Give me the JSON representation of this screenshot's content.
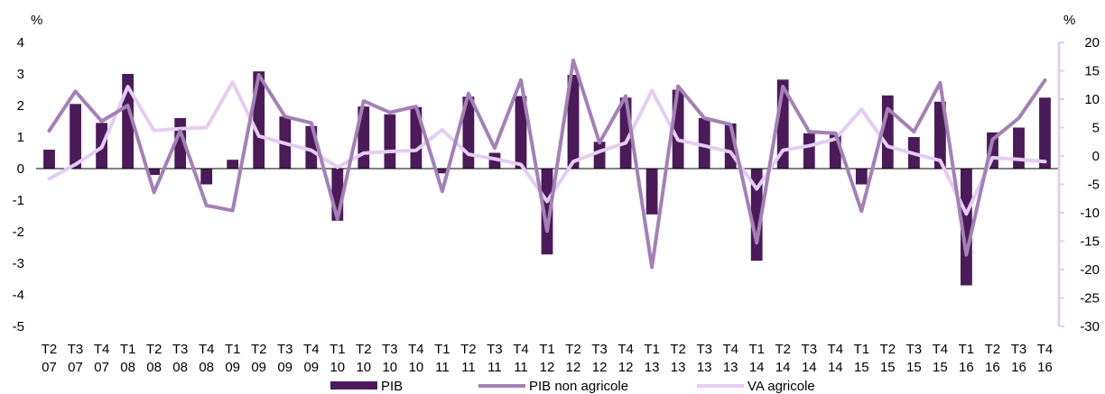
{
  "chart_data": {
    "type": "bar",
    "left_axis": {
      "unit": "%",
      "ylim": [
        -5,
        4
      ],
      "ticks": [
        "4",
        "3",
        "2",
        "1",
        "0",
        "-1",
        "-2",
        "-3",
        "-4",
        "-5"
      ]
    },
    "right_axis": {
      "unit": "%",
      "ylim": [
        -30,
        20
      ],
      "ticks": [
        "20",
        "15",
        "10",
        "5",
        "0",
        "-5",
        "-10",
        "-15",
        "-20",
        "-25",
        "-30"
      ]
    },
    "categories": [
      {
        "q": "T2",
        "y": "07"
      },
      {
        "q": "T3",
        "y": "07"
      },
      {
        "q": "T4",
        "y": "07"
      },
      {
        "q": "T1",
        "y": "08"
      },
      {
        "q": "T2",
        "y": "08"
      },
      {
        "q": "T3",
        "y": "08"
      },
      {
        "q": "T4",
        "y": "08"
      },
      {
        "q": "T1",
        "y": "09"
      },
      {
        "q": "T2",
        "y": "09"
      },
      {
        "q": "T3",
        "y": "09"
      },
      {
        "q": "T4",
        "y": "09"
      },
      {
        "q": "T1",
        "y": "10"
      },
      {
        "q": "T2",
        "y": "10"
      },
      {
        "q": "T3",
        "y": "10"
      },
      {
        "q": "T4",
        "y": "10"
      },
      {
        "q": "T1",
        "y": "11"
      },
      {
        "q": "T2",
        "y": "11"
      },
      {
        "q": "T3",
        "y": "11"
      },
      {
        "q": "T4",
        "y": "11"
      },
      {
        "q": "T1",
        "y": "12"
      },
      {
        "q": "T2",
        "y": "12"
      },
      {
        "q": "T3",
        "y": "12"
      },
      {
        "q": "T4",
        "y": "12"
      },
      {
        "q": "T1",
        "y": "13"
      },
      {
        "q": "T2",
        "y": "13"
      },
      {
        "q": "T3",
        "y": "13"
      },
      {
        "q": "T4",
        "y": "13"
      },
      {
        "q": "T1",
        "y": "14"
      },
      {
        "q": "T2",
        "y": "14"
      },
      {
        "q": "T3",
        "y": "14"
      },
      {
        "q": "T4",
        "y": "14"
      },
      {
        "q": "T1",
        "y": "15"
      },
      {
        "q": "T2",
        "y": "15"
      },
      {
        "q": "T3",
        "y": "15"
      },
      {
        "q": "T4",
        "y": "15"
      },
      {
        "q": "T1",
        "y": "16"
      },
      {
        "q": "T2",
        "y": "16"
      },
      {
        "q": "T3",
        "y": "16"
      },
      {
        "q": "T4",
        "y": "16"
      }
    ],
    "series": [
      {
        "name": "PIB",
        "type": "bar",
        "axis": "left",
        "color": "#4b1a59",
        "values": [
          0.6,
          2.05,
          1.45,
          3.0,
          -0.2,
          1.6,
          -0.5,
          0.28,
          3.08,
          1.65,
          1.35,
          -1.65,
          1.97,
          1.72,
          1.95,
          -0.15,
          2.28,
          0.5,
          2.3,
          -2.72,
          2.97,
          0.85,
          2.25,
          -1.45,
          2.5,
          1.6,
          1.43,
          -2.92,
          2.82,
          1.12,
          1.12,
          -0.5,
          2.32,
          1.0,
          2.12,
          -3.7,
          1.15,
          1.3,
          2.25
        ]
      },
      {
        "name": "PIB non agricole",
        "type": "line",
        "axis": "left",
        "color": "#a381b5",
        "values": [
          1.2,
          2.45,
          1.5,
          2.0,
          -0.75,
          1.2,
          -1.17,
          -1.33,
          2.97,
          1.65,
          1.45,
          -1.6,
          2.14,
          1.78,
          1.97,
          -0.72,
          2.38,
          0.65,
          2.81,
          -1.98,
          3.43,
          0.82,
          2.3,
          -3.13,
          2.61,
          1.6,
          1.4,
          -2.35,
          2.6,
          1.17,
          1.12,
          -1.35,
          1.9,
          1.17,
          2.72,
          -2.73,
          0.92,
          1.6,
          2.8
        ]
      },
      {
        "name": "VA agricole",
        "type": "line",
        "axis": "right",
        "color": "#e4cdf2",
        "values": [
          -4.0,
          -1.5,
          1.5,
          12.2,
          4.5,
          4.8,
          5.0,
          13.0,
          3.5,
          2.2,
          1.0,
          -2.0,
          0.5,
          0.8,
          1.0,
          4.6,
          0.3,
          -0.5,
          -1.5,
          -8.0,
          -1.0,
          0.8,
          2.3,
          11.5,
          2.8,
          1.8,
          0.7,
          -5.8,
          1.0,
          1.8,
          3.0,
          8.2,
          1.7,
          0.4,
          -0.8,
          -10.2,
          -0.3,
          -0.6,
          -1.0
        ]
      }
    ],
    "legend": {
      "position": "bottom",
      "labels": [
        "PIB",
        "PIB non agricole",
        "VA agricole"
      ]
    },
    "grid": false
  }
}
